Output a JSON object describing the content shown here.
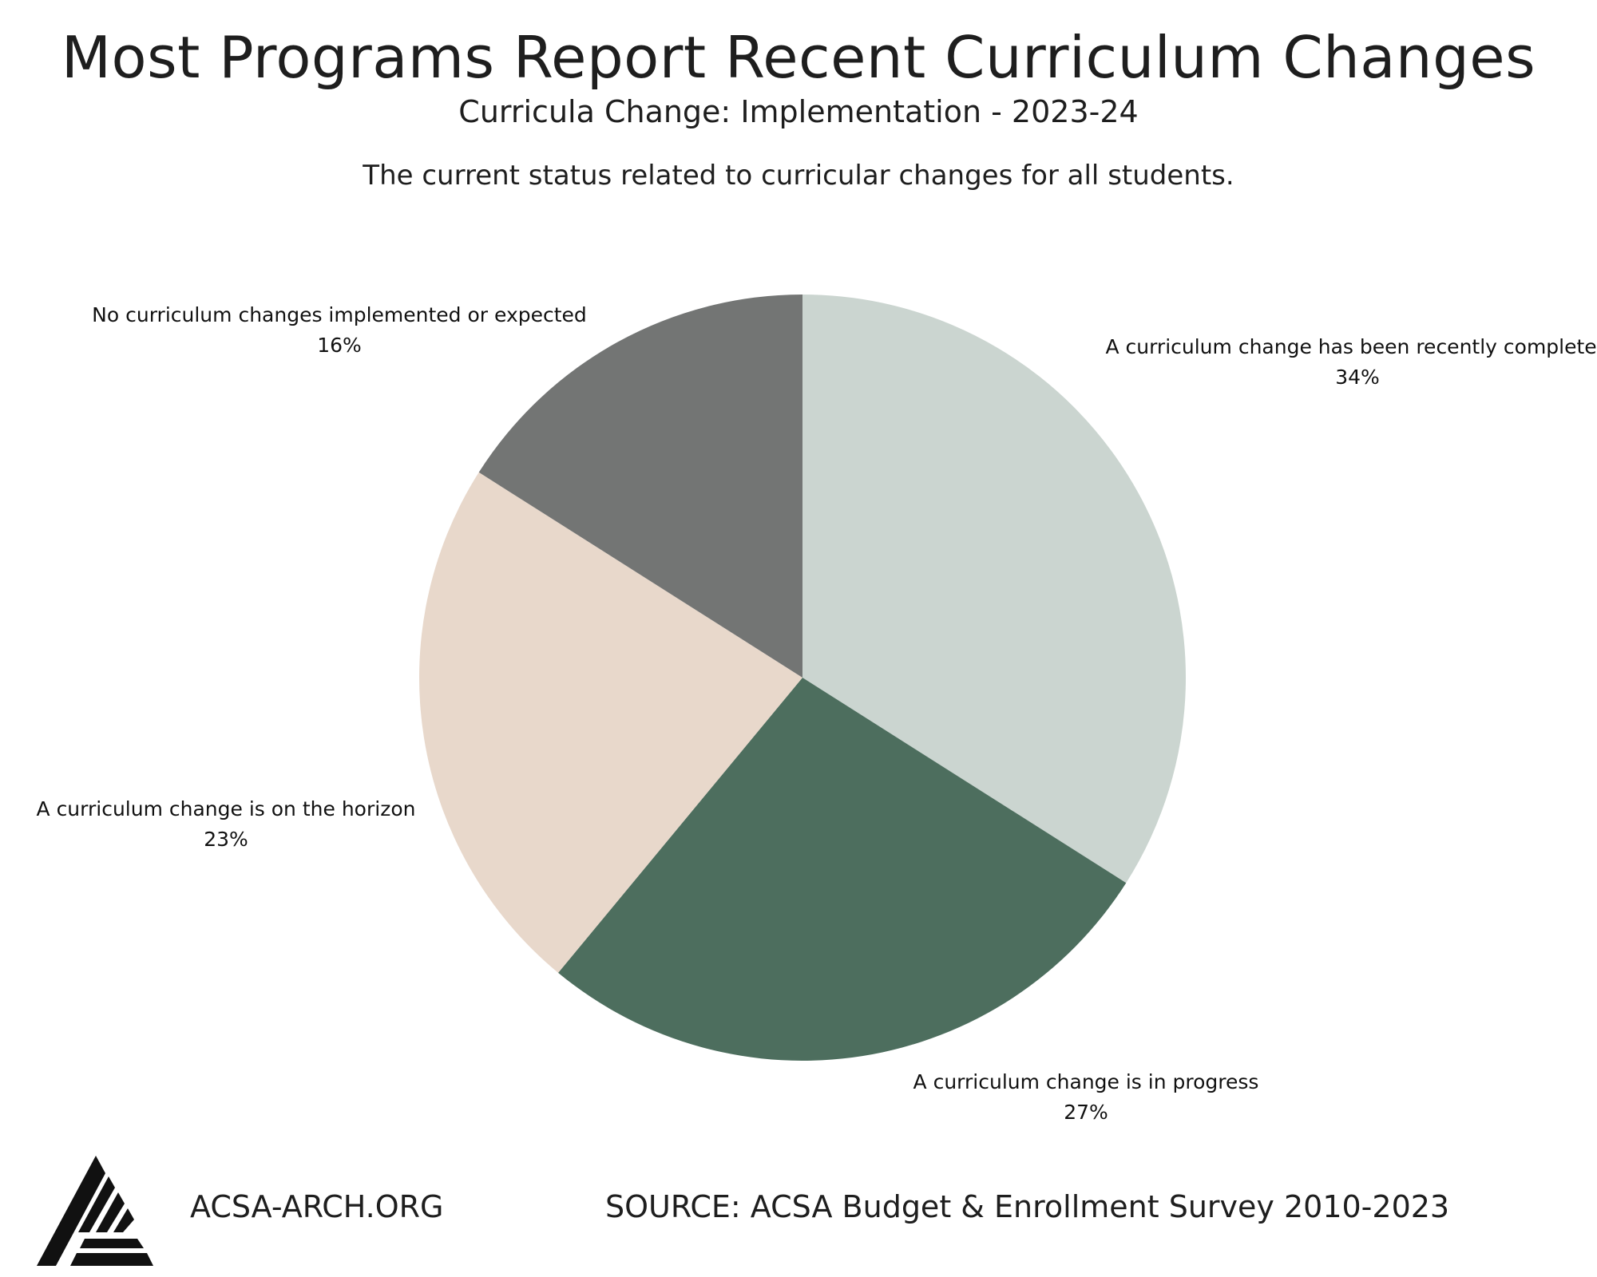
{
  "title": "Most Programs Report Recent Curriculum Changes",
  "subtitle": "Curricula Change: Implementation - 2023-24",
  "question": "The current status related to curricular changes for all students.",
  "footer": {
    "website": "ACSA-ARCH.ORG",
    "source": "SOURCE: ACSA Budget & Enrollment Survey 2010-2023"
  },
  "logo_icon": "acsa-triangle-logo-icon",
  "chart_data": {
    "type": "pie",
    "start_angle": "12 o'clock, clockwise",
    "slices": [
      {
        "label": "A curriculum change has been recently completed",
        "value": 34,
        "display": "34%",
        "color": "#cbd5d0"
      },
      {
        "label": "A curriculum change is in progress",
        "value": 27,
        "display": "27%",
        "color": "#4d6e5e"
      },
      {
        "label": "A curriculum change is on the horizon",
        "value": 23,
        "display": "23%",
        "color": "#e8d8cb"
      },
      {
        "label": "No curriculum changes implemented or expected",
        "value": 16,
        "display": "16%",
        "color": "#737574"
      }
    ]
  }
}
